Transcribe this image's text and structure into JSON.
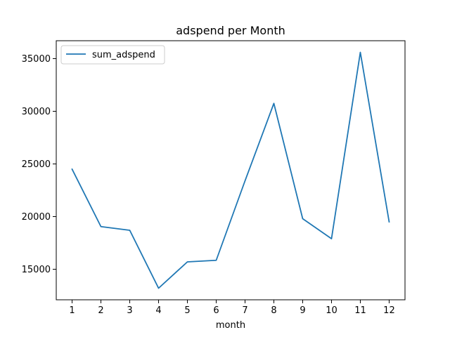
{
  "chart_data": {
    "type": "line",
    "title": "adspend per Month",
    "xlabel": "month",
    "ylabel": "",
    "x": [
      1,
      2,
      3,
      4,
      5,
      6,
      7,
      8,
      9,
      10,
      11,
      12
    ],
    "x_ticks": [
      1,
      2,
      3,
      4,
      5,
      6,
      7,
      8,
      9,
      10,
      11,
      12
    ],
    "y_ticks": [
      15000,
      20000,
      25000,
      30000,
      35000
    ],
    "xlim": [
      0.45,
      12.55
    ],
    "ylim": [
      12100,
      36700
    ],
    "grid": false,
    "legend_position": "top-left",
    "series": [
      {
        "name": "sum_adspend",
        "color": "#1f77b4",
        "values": [
          24500,
          19050,
          18700,
          13200,
          15700,
          15850,
          23400,
          30750,
          19800,
          17900,
          35600,
          19500
        ]
      }
    ]
  }
}
